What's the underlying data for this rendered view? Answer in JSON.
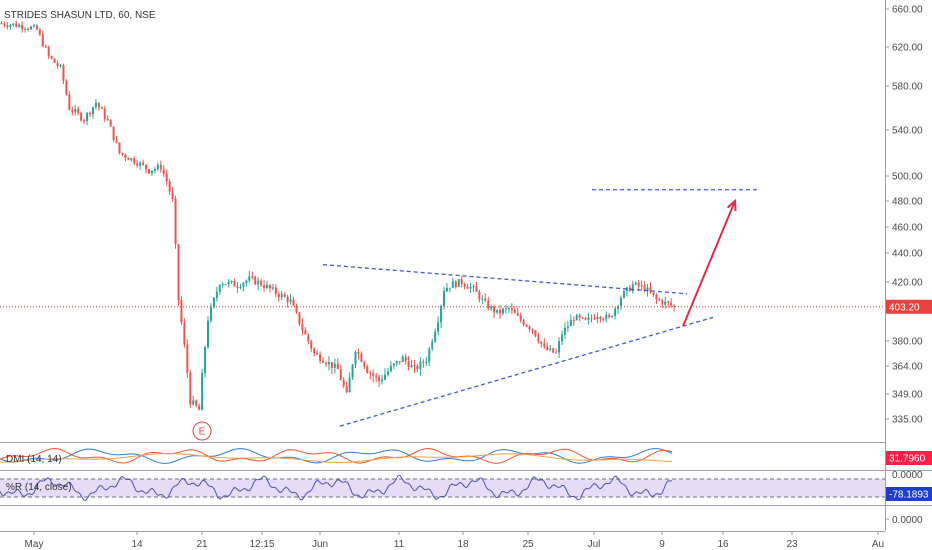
{
  "header": {
    "symbol": "STRIDES SHASUN LTD, 60, NSE"
  },
  "colors": {
    "up": "#26a69a",
    "down": "#ef5350",
    "price_line": "#e53935",
    "badge": "#e8423f",
    "trendline": "#3f5bd1",
    "arrow": "#e8294a",
    "willr_band": "#e6dcf8",
    "willr_line": "#4b56ac",
    "dmi_plus": "#2b7fd4",
    "dmi_minus": "#f2562e",
    "adx": "#f2a13c",
    "dmi_badge": "#ff1e45",
    "willr_badge": "#1e3ec8",
    "di_badge_blue": "#2962ff"
  },
  "chart_data": [
    {
      "type": "candlestick",
      "title": "STRIDES SHASUN LTD, 60, NSE",
      "ylim": [
        325,
        670
      ],
      "y_ticks": [
        {
          "value": 660,
          "label": "660.00"
        },
        {
          "value": 620,
          "label": "620.00"
        },
        {
          "value": 580,
          "label": "580.00"
        },
        {
          "value": 540,
          "label": "540.00"
        },
        {
          "value": 500,
          "label": "500.00"
        },
        {
          "value": 480,
          "label": "480.00"
        },
        {
          "value": 460,
          "label": "460.00"
        },
        {
          "value": 440,
          "label": "440.00"
        },
        {
          "value": 420,
          "label": "420.00"
        },
        {
          "value": 380,
          "label": "380.00"
        },
        {
          "value": 364,
          "label": "364.00"
        },
        {
          "value": 349,
          "label": "349.00"
        },
        {
          "value": 335,
          "label": "335.00"
        }
      ],
      "last_price": {
        "value": 403.2,
        "label": "403.20"
      },
      "x_ticks": [
        "May",
        "14",
        "21",
        "12:15",
        "Jun",
        "11",
        "18",
        "25",
        "Jul",
        "9",
        "16",
        "23",
        "Au"
      ],
      "price_path": [
        {
          "bar": 0,
          "value": 645
        },
        {
          "bar": 8,
          "value": 642
        },
        {
          "bar": 12,
          "value": 638
        },
        {
          "bar": 16,
          "value": 610
        },
        {
          "bar": 20,
          "value": 598
        },
        {
          "bar": 23,
          "value": 560
        },
        {
          "bar": 28,
          "value": 550
        },
        {
          "bar": 32,
          "value": 565
        },
        {
          "bar": 36,
          "value": 548
        },
        {
          "bar": 40,
          "value": 520
        },
        {
          "bar": 46,
          "value": 512
        },
        {
          "bar": 50,
          "value": 505
        },
        {
          "bar": 54,
          "value": 508
        },
        {
          "bar": 56,
          "value": 496
        },
        {
          "bar": 58,
          "value": 480
        },
        {
          "bar": 60,
          "value": 408
        },
        {
          "bar": 64,
          "value": 345
        },
        {
          "bar": 67,
          "value": 340
        },
        {
          "bar": 70,
          "value": 395
        },
        {
          "bar": 74,
          "value": 420
        },
        {
          "bar": 80,
          "value": 418
        },
        {
          "bar": 84,
          "value": 422
        },
        {
          "bar": 88,
          "value": 419
        },
        {
          "bar": 92,
          "value": 414
        },
        {
          "bar": 98,
          "value": 407
        },
        {
          "bar": 102,
          "value": 388
        },
        {
          "bar": 106,
          "value": 372
        },
        {
          "bar": 110,
          "value": 367
        },
        {
          "bar": 114,
          "value": 362
        },
        {
          "bar": 117,
          "value": 348
        },
        {
          "bar": 120,
          "value": 375
        },
        {
          "bar": 124,
          "value": 362
        },
        {
          "bar": 128,
          "value": 356
        },
        {
          "bar": 132,
          "value": 363
        },
        {
          "bar": 136,
          "value": 369
        },
        {
          "bar": 140,
          "value": 362
        },
        {
          "bar": 144,
          "value": 368
        },
        {
          "bar": 148,
          "value": 395
        },
        {
          "bar": 150,
          "value": 415
        },
        {
          "bar": 152,
          "value": 418
        },
        {
          "bar": 156,
          "value": 420
        },
        {
          "bar": 160,
          "value": 415
        },
        {
          "bar": 164,
          "value": 405
        },
        {
          "bar": 168,
          "value": 399
        },
        {
          "bar": 172,
          "value": 402
        },
        {
          "bar": 176,
          "value": 394
        },
        {
          "bar": 180,
          "value": 388
        },
        {
          "bar": 184,
          "value": 375
        },
        {
          "bar": 188,
          "value": 372
        },
        {
          "bar": 190,
          "value": 385
        },
        {
          "bar": 194,
          "value": 396
        },
        {
          "bar": 198,
          "value": 393
        },
        {
          "bar": 202,
          "value": 398
        },
        {
          "bar": 206,
          "value": 395
        },
        {
          "bar": 210,
          "value": 410
        },
        {
          "bar": 214,
          "value": 418
        },
        {
          "bar": 218,
          "value": 416
        },
        {
          "bar": 222,
          "value": 408
        },
        {
          "bar": 226,
          "value": 405
        },
        {
          "bar": 228,
          "value": 403
        }
      ],
      "annotations": {
        "earnings_badge": "E",
        "pattern": "symmetrical triangle with breakout target line"
      }
    },
    {
      "type": "line",
      "title": "DMI (14, 14)",
      "series": [
        {
          "role": "+DI"
        },
        {
          "role": "-DI"
        },
        {
          "role": "ADX"
        }
      ],
      "last_value": {
        "value": 31.796,
        "label": "31.7960"
      },
      "secondary_badge": ""
    },
    {
      "type": "line",
      "title": "%R (14, close)",
      "ylim": [
        -100,
        0
      ],
      "y_ticks": [
        {
          "value": 0,
          "label": "0.0000"
        }
      ],
      "overbought": -20,
      "oversold": -80,
      "last_value": {
        "value": -78.1893,
        "label": "-78.1893"
      },
      "secondary_badge": "",
      "price_scale_zero": "0.0000"
    }
  ]
}
